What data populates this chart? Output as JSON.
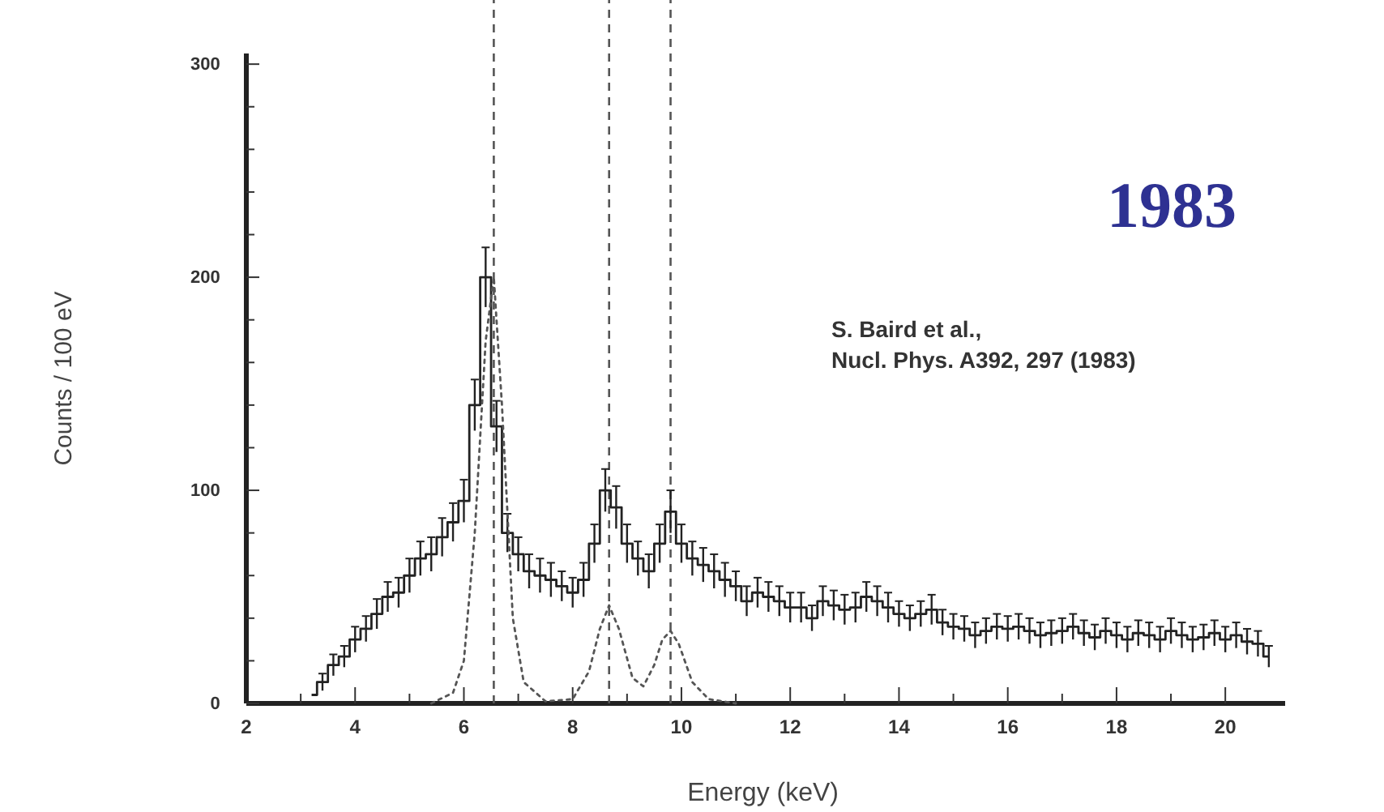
{
  "chart_data": {
    "type": "step",
    "xlabel": "Energy (keV)",
    "ylabel": "Counts / 100 eV",
    "xlim": [
      2,
      21.1
    ],
    "xticks": [
      2,
      {
        "value": 3,
        "label": null
      },
      4,
      {
        "value": 5,
        "label": null
      },
      6,
      {
        "value": 7,
        "label": null
      },
      8,
      {
        "value": 9,
        "label": null
      },
      10,
      {
        "value": 11,
        "label": null
      },
      12,
      {
        "value": 13,
        "label": null
      },
      14,
      {
        "value": 15,
        "label": null
      },
      16,
      {
        "value": 17,
        "label": null
      },
      18,
      {
        "value": 19,
        "label": null
      },
      20
    ],
    "ylim": [
      0,
      305
    ],
    "yticks": [
      0,
      {
        "value": 20,
        "label": null
      },
      {
        "value": 40,
        "label": null
      },
      {
        "value": 60,
        "label": null
      },
      {
        "value": 80,
        "label": null
      },
      100,
      {
        "value": 120,
        "label": null
      },
      {
        "value": 140,
        "label": null
      },
      {
        "value": 160,
        "label": null
      },
      {
        "value": 180,
        "label": null
      },
      200,
      {
        "value": 220,
        "label": null
      },
      {
        "value": 240,
        "label": null
      },
      {
        "value": 260,
        "label": null
      },
      {
        "value": 280,
        "label": null
      },
      300
    ],
    "series": [
      {
        "color": "#222222",
        "x": [
          3.2,
          3.4,
          3.6,
          3.8,
          4.0,
          4.2,
          4.4,
          4.6,
          4.8,
          5.0,
          5.2,
          5.4,
          5.6,
          5.8,
          6.0,
          6.2,
          6.4,
          6.6,
          6.8,
          7.0,
          7.2,
          7.4,
          7.6,
          7.8,
          8.0,
          8.2,
          8.4,
          8.6,
          8.8,
          9.0,
          9.2,
          9.4,
          9.6,
          9.8,
          10.0,
          10.2,
          10.4,
          10.6,
          10.8,
          11.0,
          11.2,
          11.4,
          11.6,
          11.8,
          12.0,
          12.2,
          12.4,
          12.6,
          12.8,
          13.0,
          13.2,
          13.4,
          13.6,
          13.8,
          14.0,
          14.2,
          14.4,
          14.6,
          14.8,
          15.0,
          15.2,
          15.4,
          15.6,
          15.8,
          16.0,
          16.2,
          16.4,
          16.6,
          16.8,
          17.0,
          17.2,
          17.4,
          17.6,
          17.8,
          18.0,
          18.2,
          18.4,
          18.6,
          18.8,
          19.0,
          19.2,
          19.4,
          19.6,
          19.8,
          20.0,
          20.2,
          20.4,
          20.6,
          20.8
        ],
        "values": [
          4,
          10,
          18,
          22,
          30,
          35,
          42,
          50,
          52,
          60,
          68,
          70,
          78,
          85,
          95,
          140,
          200,
          130,
          80,
          70,
          62,
          60,
          58,
          55,
          52,
          58,
          75,
          100,
          92,
          75,
          68,
          62,
          75,
          90,
          75,
          68,
          65,
          62,
          58,
          55,
          48,
          52,
          50,
          48,
          45,
          45,
          40,
          48,
          46,
          44,
          45,
          50,
          48,
          45,
          42,
          40,
          42,
          44,
          38,
          36,
          35,
          32,
          34,
          36,
          35,
          36,
          34,
          32,
          33,
          34,
          36,
          33,
          31,
          34,
          32,
          30,
          33,
          32,
          30,
          34,
          32,
          30,
          31,
          33,
          30,
          32,
          29,
          28,
          22
        ],
        "errors": [
          null,
          4,
          5,
          5,
          6,
          6,
          7,
          7,
          7,
          8,
          8,
          8,
          9,
          9,
          10,
          12,
          14,
          12,
          9,
          8,
          8,
          8,
          8,
          7,
          7,
          8,
          9,
          10,
          10,
          9,
          8,
          8,
          9,
          10,
          9,
          8,
          8,
          8,
          8,
          7,
          7,
          7,
          7,
          7,
          7,
          7,
          6,
          7,
          7,
          7,
          7,
          7,
          7,
          7,
          6,
          6,
          6,
          7,
          6,
          6,
          6,
          6,
          6,
          6,
          6,
          6,
          6,
          6,
          6,
          6,
          6,
          6,
          6,
          6,
          6,
          6,
          6,
          6,
          6,
          6,
          6,
          6,
          6,
          6,
          6,
          6,
          6,
          6,
          5
        ]
      },
      {
        "type": "line",
        "color": "#555555",
        "line_style": "dotted",
        "x": [
          5.4,
          5.8,
          6.0,
          6.2,
          6.4,
          6.55,
          6.7,
          6.9,
          7.1,
          7.5,
          8.0,
          8.3,
          8.5,
          8.67,
          8.85,
          9.1,
          9.3,
          9.5,
          9.65,
          9.8,
          9.95,
          10.2,
          10.5,
          11.0
        ],
        "values": [
          0,
          5,
          20,
          80,
          170,
          200,
          140,
          40,
          10,
          1,
          2,
          15,
          35,
          46,
          35,
          12,
          8,
          18,
          30,
          34,
          28,
          10,
          2,
          0
        ]
      }
    ],
    "ref_lines": [
      {
        "axis": "x",
        "value": 6.55,
        "line_style": "dashed",
        "color": "#555555"
      },
      {
        "axis": "x",
        "value": 8.67,
        "line_style": "dashed",
        "color": "#555555"
      },
      {
        "axis": "x",
        "value": 9.8,
        "line_style": "dashed",
        "color": "#555555"
      }
    ],
    "annotations": [
      "1983",
      "S. Baird et al.,\nNucl. Phys. A392, 297 (1983)"
    ]
  }
}
